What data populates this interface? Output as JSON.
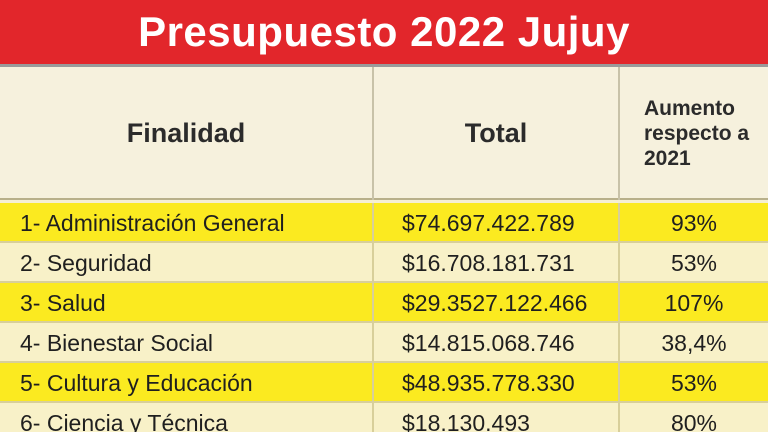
{
  "chart_data": {
    "type": "table",
    "title": "Presupuesto 2022 Jujuy",
    "columns": [
      "Finalidad",
      "Total",
      "Aumento respecto a 2021"
    ],
    "rows": [
      {
        "finalidad": "1- Administración General",
        "total": "$74.697.422.789",
        "aumento": "93%"
      },
      {
        "finalidad": "2- Seguridad",
        "total": "$16.708.181.731",
        "aumento": "53%"
      },
      {
        "finalidad": "3- Salud",
        "total": "$29.3527.122.466",
        "aumento": "107%"
      },
      {
        "finalidad": "4- Bienestar Social",
        "total": "$14.815.068.746",
        "aumento": "38,4%"
      },
      {
        "finalidad": "5- Cultura y Educación",
        "total": "$48.935.778.330",
        "aumento": "53%"
      },
      {
        "finalidad": "6- Ciencia y Técnica",
        "total": "$18.130.493",
        "aumento": "80%"
      }
    ]
  },
  "colors": {
    "title_background": "#e2262b",
    "row_highlight": "#fbea20",
    "row_alternate": "#f8f1c8"
  }
}
